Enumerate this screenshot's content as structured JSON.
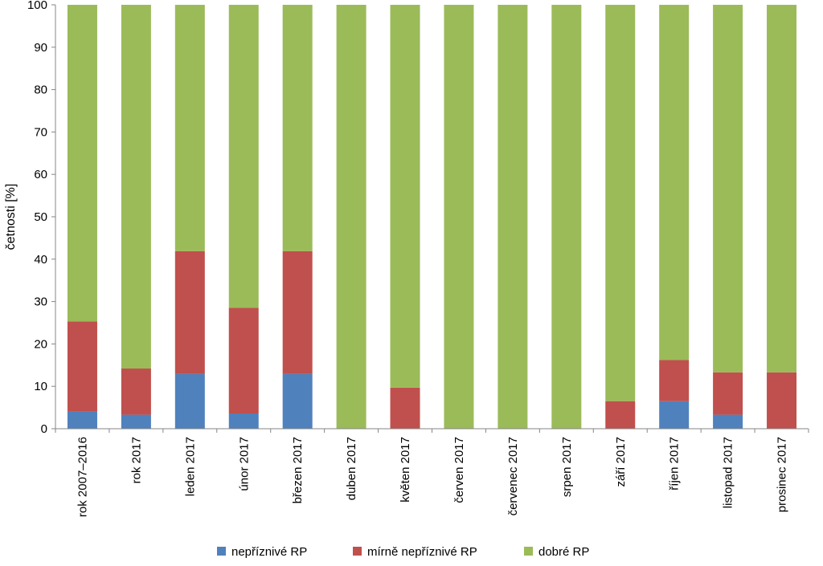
{
  "chart_data": {
    "type": "bar",
    "stacked": true,
    "title": "",
    "xlabel": "",
    "ylabel": "četnosti [%]",
    "ylim": [
      0,
      100
    ],
    "yticks": [
      0,
      10,
      20,
      30,
      40,
      50,
      60,
      70,
      80,
      90,
      100
    ],
    "grid": false,
    "legend_position": "bottom",
    "categories": [
      "rok 2007–2016",
      "rok 2017",
      "leden 2017",
      "únor 2017",
      "březen 2017",
      "duben 2017",
      "květen 2017",
      "červen 2017",
      "červenec 2017",
      "srpen 2017",
      "září 2017",
      "říjen 2017",
      "listopad 2017",
      "prosinec 2017"
    ],
    "series": [
      {
        "name": "nepříznivé RP",
        "color": "#4f81bd",
        "values": [
          4.0,
          3.3,
          12.9,
          3.6,
          12.9,
          0,
          0,
          0,
          0,
          0,
          0,
          6.5,
          3.3,
          0
        ]
      },
      {
        "name": "mírně nepříznivé RP",
        "color": "#c0504d",
        "values": [
          21.3,
          10.9,
          29.0,
          24.9,
          29.0,
          0,
          9.7,
          0,
          0,
          0,
          6.5,
          9.7,
          10.0,
          13.3
        ]
      },
      {
        "name": "dobré RP",
        "color": "#9bbb59",
        "values": [
          74.7,
          85.8,
          58.1,
          71.5,
          58.1,
          100,
          90.3,
          100,
          100,
          100,
          93.5,
          83.8,
          86.7,
          86.7
        ]
      }
    ]
  }
}
